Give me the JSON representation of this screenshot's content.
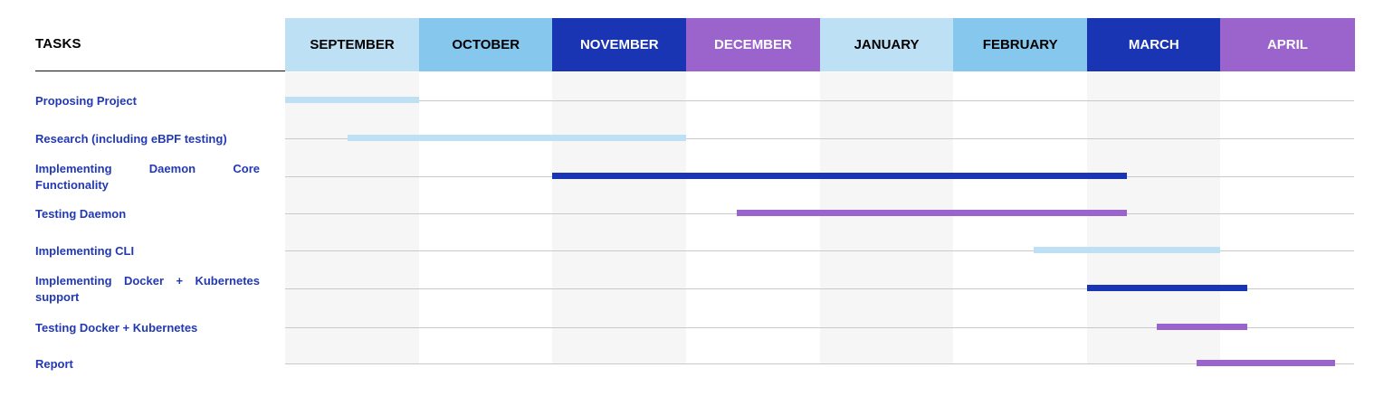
{
  "chart_data": {
    "type": "gantt",
    "title": "",
    "tasks_header": "TASKS",
    "months": [
      {
        "label": "SEPTEMBER",
        "color": "#bde0f5",
        "text_color": "#000000"
      },
      {
        "label": "OCTOBER",
        "color": "#86c7ee",
        "text_color": "#000000"
      },
      {
        "label": "NOVEMBER",
        "color": "#1a35b3",
        "text_color": "#ffffff"
      },
      {
        "label": "DECEMBER",
        "color": "#9b63cc",
        "text_color": "#ffffff"
      },
      {
        "label": "JANUARY",
        "color": "#bde0f5",
        "text_color": "#000000"
      },
      {
        "label": "FEBRUARY",
        "color": "#86c7ee",
        "text_color": "#000000"
      },
      {
        "label": "MARCH",
        "color": "#1a35b3",
        "text_color": "#ffffff"
      },
      {
        "label": "APRIL",
        "color": "#9b63cc",
        "text_color": "#ffffff"
      }
    ],
    "tasks": [
      {
        "name": "Proposing Project",
        "start": 0.0,
        "end": 1.0,
        "color": "#bde0f5"
      },
      {
        "name": "Research (including eBPF testing)",
        "start": 0.47,
        "end": 3.0,
        "color": "#bde0f5"
      },
      {
        "name": "Implementing Daemon Core Functionality",
        "start": 2.0,
        "end": 6.3,
        "color": "#1a35b3"
      },
      {
        "name": "Testing Daemon",
        "start": 3.38,
        "end": 6.3,
        "color": "#9b63cc"
      },
      {
        "name": "Implementing CLI",
        "start": 5.6,
        "end": 7.0,
        "color": "#bde0f5"
      },
      {
        "name": "Implementing Docker + Kubernetes support",
        "start": 6.0,
        "end": 7.2,
        "color": "#1a35b3"
      },
      {
        "name": "Testing Docker + Kubernetes",
        "start": 6.52,
        "end": 7.2,
        "color": "#9b63cc"
      },
      {
        "name": "Report",
        "start": 6.82,
        "end": 7.86,
        "color": "#9b63cc"
      }
    ],
    "shaded_months": [
      0,
      2,
      4,
      6
    ],
    "shade_color": "#f6f6f6",
    "grid_color": "#c9c9c9",
    "label_color": "#2239b3"
  }
}
